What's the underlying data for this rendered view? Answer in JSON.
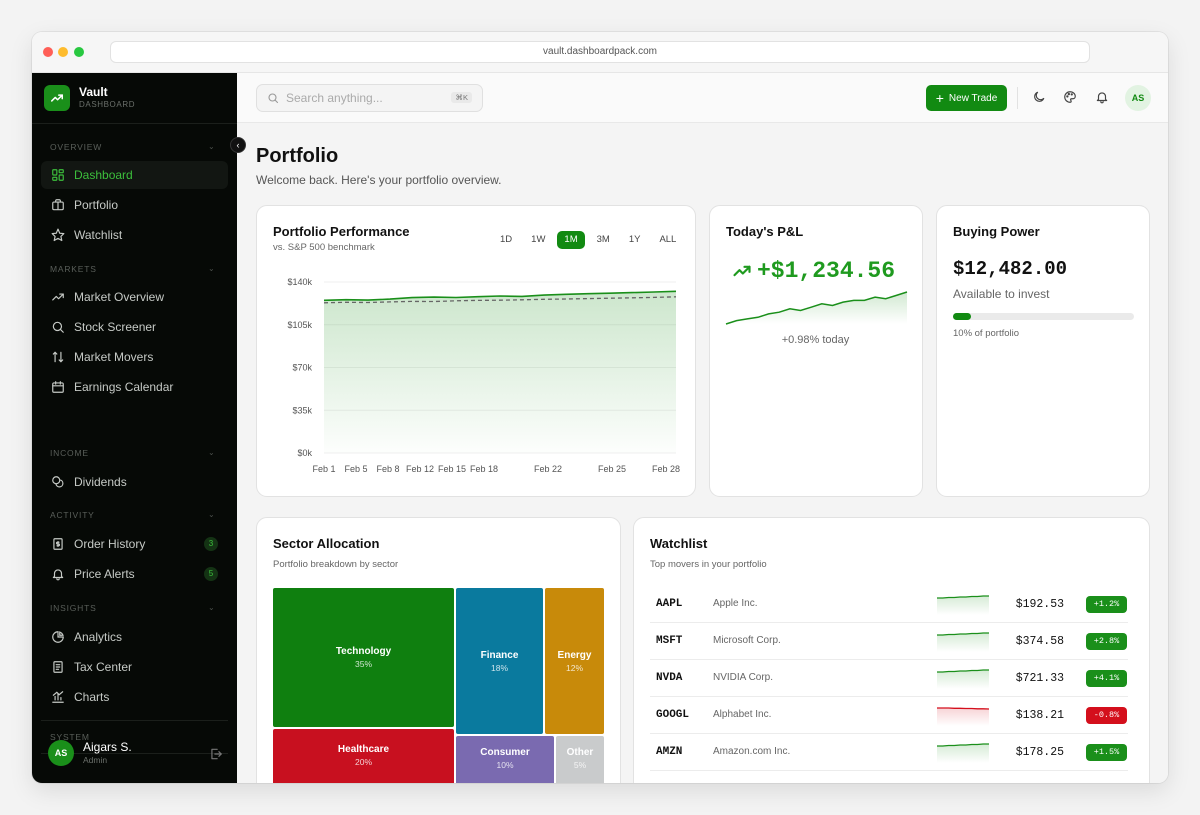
{
  "browser": {
    "url": "vault.dashboardpack.com"
  },
  "brand": {
    "name": "Vault",
    "subtitle": "DASHBOARD"
  },
  "sidebar": {
    "sections": [
      {
        "label": "OVERVIEW"
      },
      {
        "label": "MARKETS"
      },
      {
        "label": "INCOME"
      },
      {
        "label": "ACTIVITY"
      },
      {
        "label": "INSIGHTS"
      },
      {
        "label": "SYSTEM"
      }
    ],
    "items": [
      {
        "label": "Dashboard",
        "icon": "dashboard-icon"
      },
      {
        "label": "Portfolio",
        "icon": "briefcase-icon"
      },
      {
        "label": "Watchlist",
        "icon": "star-icon"
      },
      {
        "label": "Market Overview",
        "icon": "trend-icon"
      },
      {
        "label": "Stock Screener",
        "icon": "search-icon"
      },
      {
        "label": "Market Movers",
        "icon": "arrows-updown-icon"
      },
      {
        "label": "Earnings Calendar",
        "icon": "calendar-icon"
      },
      {
        "label": "Dividends",
        "icon": "coins-icon"
      },
      {
        "label": "Order History",
        "icon": "receipt-icon",
        "badge": "3"
      },
      {
        "label": "Price Alerts",
        "icon": "bell-icon",
        "badge": "5"
      },
      {
        "label": "Analytics",
        "icon": "pie-icon"
      },
      {
        "label": "Tax Center",
        "icon": "document-icon"
      },
      {
        "label": "Charts",
        "icon": "bar-chart-icon"
      }
    ],
    "user": {
      "initials": "AS",
      "name": "Aigars S.",
      "role": "Admin"
    }
  },
  "topbar": {
    "search_placeholder": "Search anything...",
    "shortcut": "⌘K",
    "new_trade_label": "New Trade",
    "avatar_initials": "AS"
  },
  "page": {
    "title": "Portfolio",
    "subtitle": "Welcome back. Here's your portfolio overview."
  },
  "performance": {
    "title": "Portfolio Performance",
    "subtitle": "vs. S&P 500 benchmark",
    "ranges": [
      "1D",
      "1W",
      "1M",
      "3M",
      "1Y",
      "ALL"
    ],
    "active_range": "1M",
    "chart_data": {
      "type": "area",
      "x_ticks": [
        "Feb 1",
        "Feb 5",
        "Feb 8",
        "Feb 12",
        "Feb 15",
        "Feb 18",
        "Feb 22",
        "Feb 25",
        "Feb 28"
      ],
      "y_ticks": [
        "$140k",
        "$105k",
        "$70k",
        "$35k",
        "$0k"
      ],
      "ylim": [
        0,
        140000
      ],
      "series": [
        {
          "values": [
            125000,
            125500,
            125200,
            126000,
            127200,
            127600,
            127300,
            128000,
            128500,
            128200,
            129300,
            129900,
            130400,
            130800,
            131300,
            131800,
            132400
          ]
        },
        {
          "values": [
            123000,
            123400,
            123200,
            123700,
            124100,
            124000,
            124600,
            124900,
            125100,
            125400,
            125800,
            126100,
            126400,
            126700,
            127100,
            127400,
            127900
          ]
        }
      ],
      "colors": {
        "portfolio": "#1a8f1a",
        "benchmark": "#666666"
      }
    }
  },
  "pnl": {
    "title": "Today's P&L",
    "value": "+$1,234.56",
    "change_text": "+0.98% today",
    "sparkline": [
      10,
      12,
      13,
      14,
      16,
      17,
      19,
      18,
      20,
      22,
      21,
      23,
      24,
      24,
      26,
      25,
      27,
      29
    ]
  },
  "buying_power": {
    "title": "Buying Power",
    "value": "$12,482.00",
    "subtitle": "Available to invest",
    "progress": 0.1,
    "progress_label": "10% of portfolio"
  },
  "sectors": {
    "title": "Sector Allocation",
    "subtitle": "Portfolio breakdown by sector",
    "items": [
      {
        "name": "Technology",
        "pct": "35%",
        "color": "#0f7f0f"
      },
      {
        "name": "Finance",
        "pct": "18%",
        "color": "#0a7a9e"
      },
      {
        "name": "Energy",
        "pct": "12%",
        "color": "#c88a0a"
      },
      {
        "name": "Healthcare",
        "pct": "20%",
        "color": "#c8101f"
      },
      {
        "name": "Consumer",
        "pct": "10%",
        "color": "#7a6ab0"
      },
      {
        "name": "Other",
        "pct": "5%",
        "color": "#c9cbcc"
      }
    ]
  },
  "watchlist": {
    "title": "Watchlist",
    "subtitle": "Top movers in your portfolio",
    "rows": [
      {
        "symbol": "AAPL",
        "name": "Apple Inc.",
        "price": "$192.53",
        "change": "+1.2%",
        "direction": "up"
      },
      {
        "symbol": "MSFT",
        "name": "Microsoft Corp.",
        "price": "$374.58",
        "change": "+2.8%",
        "direction": "up"
      },
      {
        "symbol": "NVDA",
        "name": "NVIDIA Corp.",
        "price": "$721.33",
        "change": "+4.1%",
        "direction": "up"
      },
      {
        "symbol": "GOOGL",
        "name": "Alphabet Inc.",
        "price": "$138.21",
        "change": "-0.8%",
        "direction": "down"
      },
      {
        "symbol": "AMZN",
        "name": "Amazon.com Inc.",
        "price": "$178.25",
        "change": "+1.5%",
        "direction": "up"
      }
    ],
    "colors": {
      "up": "#1a8f1a",
      "down": "#d40f1c"
    }
  }
}
